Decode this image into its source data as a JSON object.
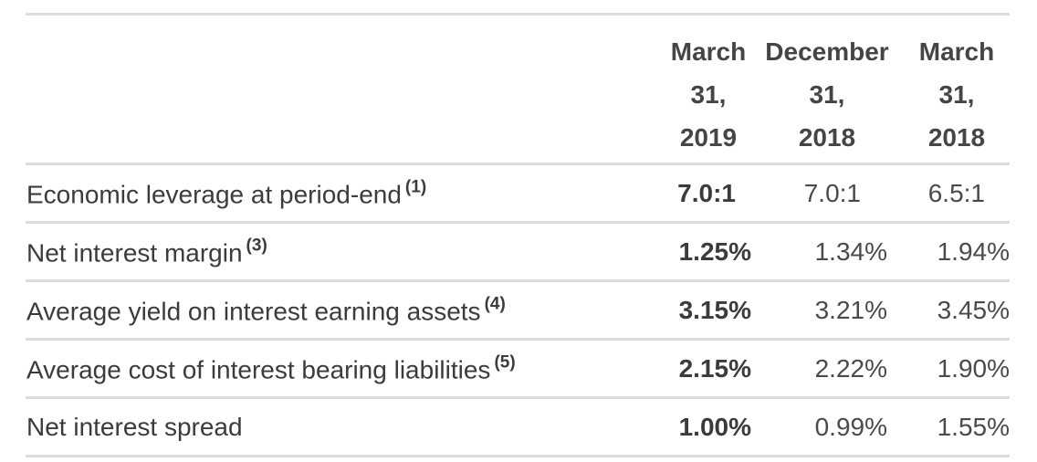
{
  "columns": [
    {
      "line1": "March",
      "line2": "31,",
      "line3": "2019"
    },
    {
      "line1": "December",
      "line2": "31,",
      "line3": "2018"
    },
    {
      "line1": "March",
      "line2": "31,",
      "line3": "2018"
    }
  ],
  "rows": [
    {
      "label": "Economic leverage at period-end",
      "note": "(1)",
      "values": [
        "7.0:1",
        "7.0:1",
        "6.5:1"
      ]
    },
    {
      "label": "Net interest margin",
      "note": "(3)",
      "values": [
        "1.25%",
        "1.34%",
        "1.94%"
      ]
    },
    {
      "label": "Average yield on interest earning assets",
      "note": "(4)",
      "values": [
        "3.15%",
        "3.21%",
        "3.45%"
      ]
    },
    {
      "label": "Average cost of interest bearing liabilities",
      "note": "(5)",
      "values": [
        "2.15%",
        "2.22%",
        "1.90%"
      ]
    },
    {
      "label": "Net interest spread",
      "note": "",
      "values": [
        "1.00%",
        "0.99%",
        "1.55%"
      ]
    }
  ]
}
